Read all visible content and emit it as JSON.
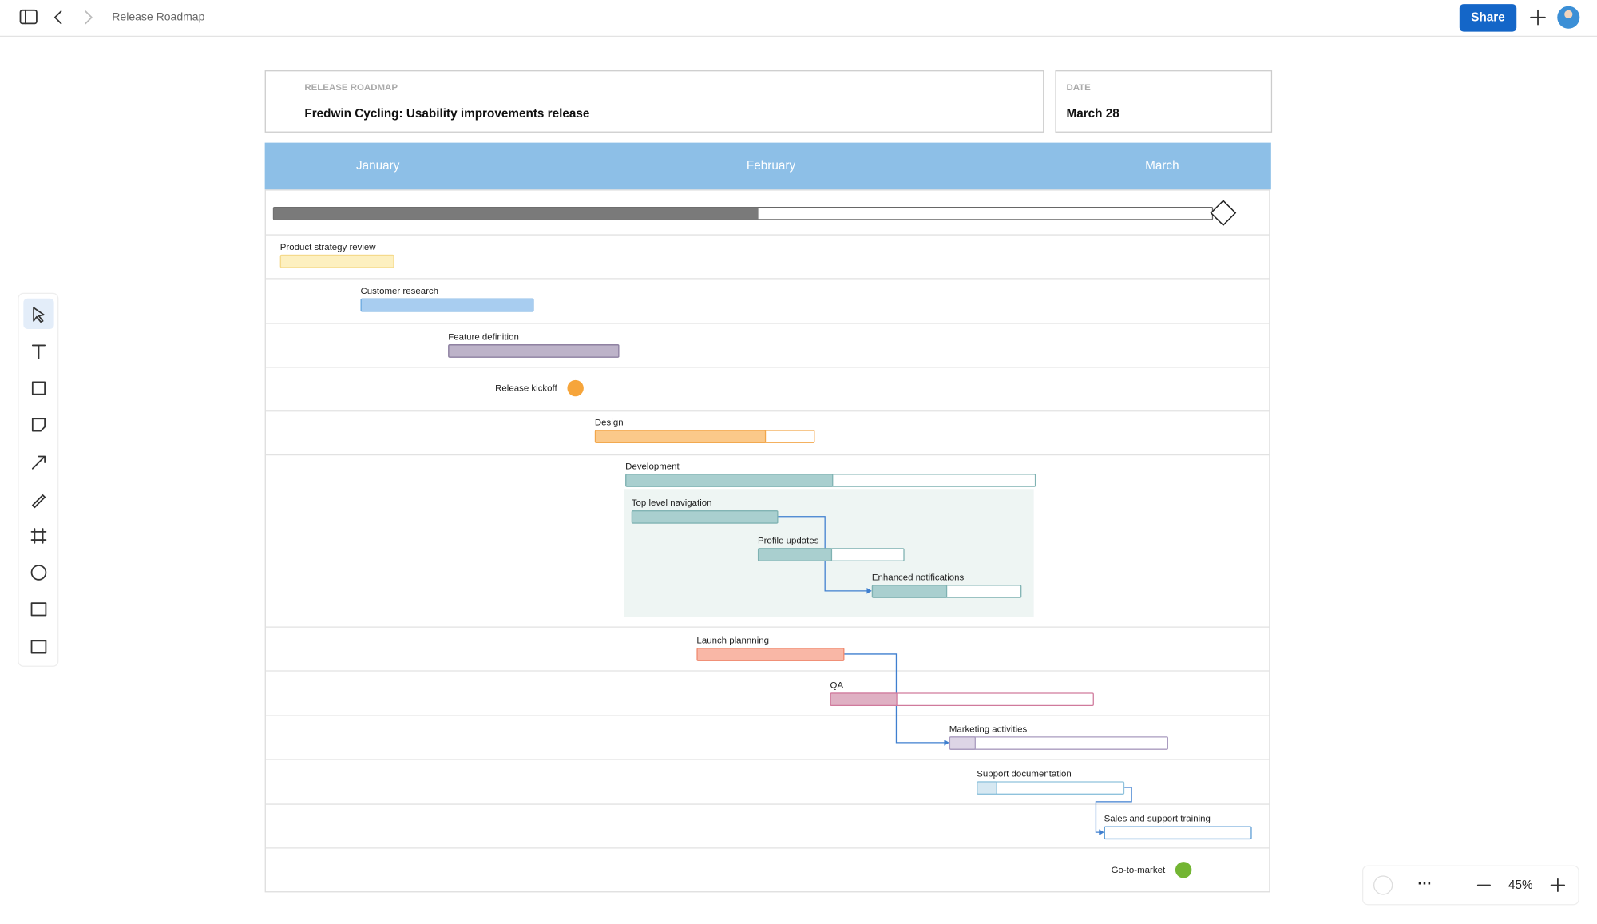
{
  "toolbar": {
    "title": "Release Roadmap",
    "share": "Share"
  },
  "header": {
    "label": "RELEASE ROADMAP",
    "title": "Fredwin Cycling: Usability improvements release",
    "date_label": "DATE",
    "date": "March 28"
  },
  "timeline": {
    "months": [
      "January",
      "February",
      "March"
    ]
  },
  "tasks": [
    {
      "label": "Product strategy review"
    },
    {
      "label": "Customer research"
    },
    {
      "label": "Feature definition"
    },
    {
      "label": "Release kickoff"
    },
    {
      "label": "Design"
    },
    {
      "label": "Development"
    },
    {
      "label": "Top level navigation"
    },
    {
      "label": "Profile updates"
    },
    {
      "label": "Enhanced notifications"
    },
    {
      "label": "Launch plannning"
    },
    {
      "label": "QA"
    },
    {
      "label": "Marketing activities"
    },
    {
      "label": "Support documentation"
    },
    {
      "label": "Sales and support training"
    },
    {
      "label": "Go-to-market"
    }
  ],
  "zoom": "45%"
}
